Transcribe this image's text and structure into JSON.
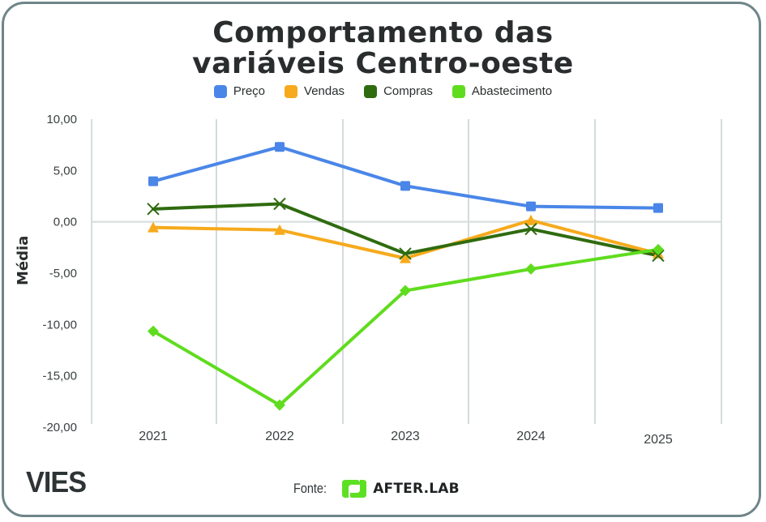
{
  "header": {
    "title_line1": "Comportamento das",
    "title_line2": "variáveis Centro-oeste"
  },
  "footer": {
    "brand": "VIES",
    "source_label": "Fonte:",
    "source_name": "AFTER.LAB",
    "source_logo_color": "#5ee022"
  },
  "chart_data": {
    "type": "line",
    "title": "Comportamento das variáveis Centro-oeste",
    "xlabel": "",
    "ylabel": "Média",
    "categories": [
      "2021",
      "2022",
      "2023",
      "2024",
      "2025"
    ],
    "ylim": [
      -20,
      10
    ],
    "yticks": [
      10,
      5,
      0,
      -5,
      -10,
      -15,
      -20
    ],
    "ytick_labels": [
      "10,00",
      "5,00",
      "0,00",
      "-5,00",
      "-10,00",
      "-15,00",
      "-20,00"
    ],
    "grid": "vertical lines + zero line",
    "legend_position": "top-center",
    "series": [
      {
        "name": "Preço",
        "color": "#4a86e8",
        "marker": "square",
        "values": [
          3.95,
          7.3,
          3.5,
          1.5,
          1.35
        ]
      },
      {
        "name": "Vendas",
        "color": "#f6aa1c",
        "marker": "triangle",
        "values": [
          -0.55,
          -0.8,
          -3.55,
          0.15,
          -3.1
        ]
      },
      {
        "name": "Compras",
        "color": "#2f6b0f",
        "marker": "x",
        "values": [
          1.25,
          1.75,
          -3.1,
          -0.7,
          -3.3
        ]
      },
      {
        "name": "Abastecimento",
        "color": "#5fdc1e",
        "marker": "diamond",
        "values": [
          -10.65,
          -17.85,
          -6.7,
          -4.6,
          -2.7
        ]
      }
    ]
  }
}
